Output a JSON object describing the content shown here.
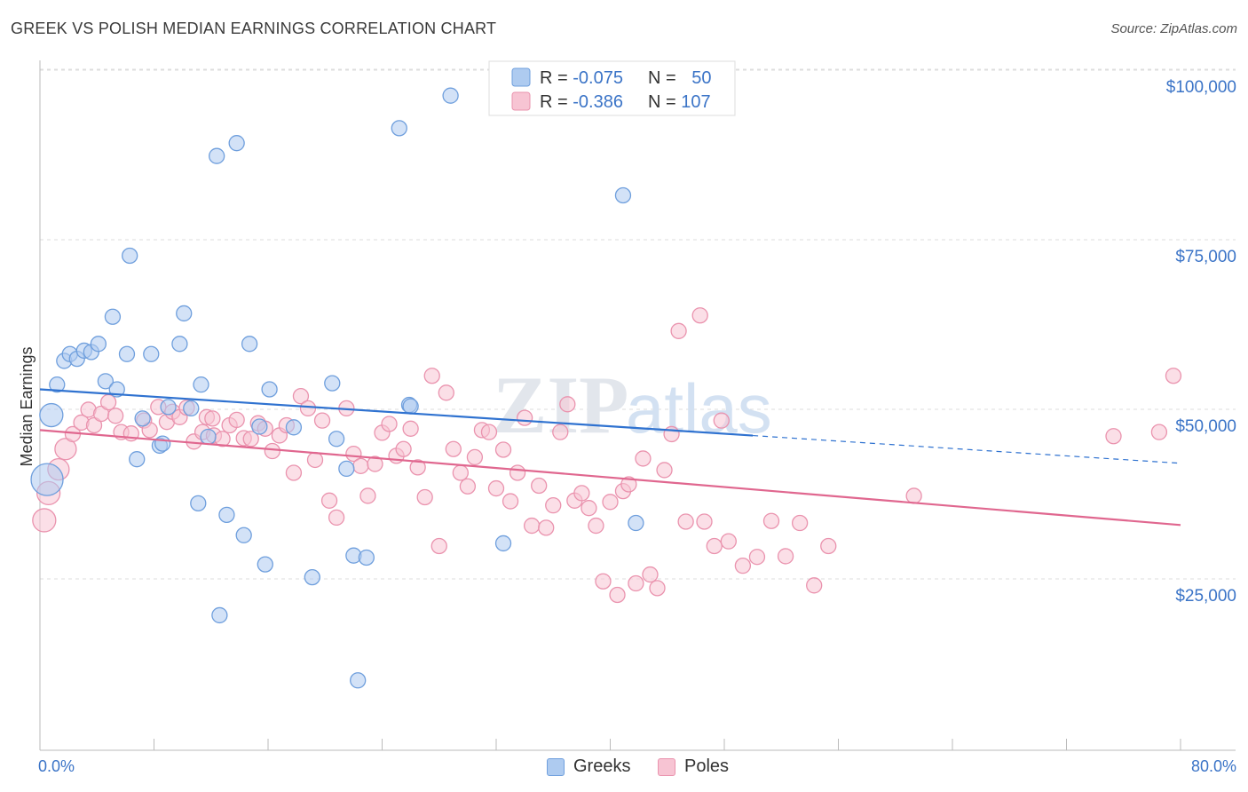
{
  "title": "GREEK VS POLISH MEDIAN EARNINGS CORRELATION CHART",
  "source": "Source: ZipAtlas.com",
  "watermark": {
    "zip": "ZIP",
    "atlas": "atlas"
  },
  "legend_top": {
    "rows": [
      {
        "r_label": "R = ",
        "r_value": "-0.075",
        "n_label": "N = ",
        "n_value": "50"
      },
      {
        "r_label": "R = ",
        "r_value": "-0.386",
        "n_label": "N = ",
        "n_value": "107"
      }
    ]
  },
  "legend_bottom": {
    "series0": "Greeks",
    "series1": "Poles"
  },
  "colors": {
    "greeks_fill": "#aecbf0",
    "greeks_stroke": "#6f9fdd",
    "greeks_line": "#2f72d0",
    "poles_fill": "#f7c4d3",
    "poles_stroke": "#ea93ae",
    "poles_line": "#e0678f",
    "tick_text": "#3b74c7",
    "grid": "#dddddd"
  },
  "chart_data": {
    "type": "scatter",
    "title": "GREEK VS POLISH MEDIAN EARNINGS CORRELATION CHART",
    "xlabel": "",
    "ylabel": "Median Earnings",
    "xlim": [
      0,
      80
    ],
    "ylim": [
      0,
      105000
    ],
    "x_tick_labels": [
      "0.0%",
      "80.0%"
    ],
    "y_ticks": [
      {
        "value": 25000,
        "label": "$25,000"
      },
      {
        "value": 50000,
        "label": "$50,000"
      },
      {
        "value": 75000,
        "label": "$75,000"
      },
      {
        "value": 100000,
        "label": "$100,000"
      }
    ],
    "grid": true,
    "legend": "top-center",
    "series": [
      {
        "name": "Greeks",
        "trend": {
          "x0": 0,
          "y0": 55300,
          "x1": 80,
          "y1": 44400,
          "solid_until": 50
        },
        "points": [
          {
            "x": 0.5,
            "y": 42000,
            "s": 18
          },
          {
            "x": 0.8,
            "y": 51500,
            "s": 13
          },
          {
            "x": 1.2,
            "y": 56000
          },
          {
            "x": 1.7,
            "y": 59500
          },
          {
            "x": 2.1,
            "y": 60500
          },
          {
            "x": 2.6,
            "y": 59800
          },
          {
            "x": 3.1,
            "y": 61000
          },
          {
            "x": 3.6,
            "y": 60800
          },
          {
            "x": 4.1,
            "y": 62000
          },
          {
            "x": 4.6,
            "y": 56500
          },
          {
            "x": 5.1,
            "y": 66000
          },
          {
            "x": 5.4,
            "y": 55300
          },
          {
            "x": 6.1,
            "y": 60500
          },
          {
            "x": 6.3,
            "y": 75000
          },
          {
            "x": 6.8,
            "y": 45000
          },
          {
            "x": 7.2,
            "y": 51000
          },
          {
            "x": 7.8,
            "y": 60500
          },
          {
            "x": 8.4,
            "y": 47000
          },
          {
            "x": 8.6,
            "y": 47300
          },
          {
            "x": 9.0,
            "y": 52700
          },
          {
            "x": 9.8,
            "y": 62000
          },
          {
            "x": 10.1,
            "y": 66500
          },
          {
            "x": 10.6,
            "y": 52500
          },
          {
            "x": 11.1,
            "y": 38500
          },
          {
            "x": 11.3,
            "y": 56000
          },
          {
            "x": 11.8,
            "y": 48300
          },
          {
            "x": 12.4,
            "y": 89700
          },
          {
            "x": 12.6,
            "y": 22000
          },
          {
            "x": 13.1,
            "y": 36800
          },
          {
            "x": 13.8,
            "y": 91600
          },
          {
            "x": 14.3,
            "y": 33800
          },
          {
            "x": 14.7,
            "y": 62000
          },
          {
            "x": 15.8,
            "y": 29500
          },
          {
            "x": 15.4,
            "y": 49800
          },
          {
            "x": 16.1,
            "y": 55300
          },
          {
            "x": 17.8,
            "y": 49700
          },
          {
            "x": 19.1,
            "y": 27600
          },
          {
            "x": 20.5,
            "y": 56200
          },
          {
            "x": 20.8,
            "y": 48000
          },
          {
            "x": 21.5,
            "y": 43600
          },
          {
            "x": 22.0,
            "y": 30800
          },
          {
            "x": 22.3,
            "y": 12400
          },
          {
            "x": 22.9,
            "y": 30500
          },
          {
            "x": 25.2,
            "y": 93800
          },
          {
            "x": 25.9,
            "y": 53000
          },
          {
            "x": 28.8,
            "y": 98600
          },
          {
            "x": 32.5,
            "y": 32600
          },
          {
            "x": 40.9,
            "y": 83900
          },
          {
            "x": 41.8,
            "y": 35600
          },
          {
            "x": 26.0,
            "y": 52800
          }
        ]
      },
      {
        "name": "Poles",
        "trend": {
          "x0": 0,
          "y0": 49300,
          "x1": 80,
          "y1": 35300,
          "solid_until": 80
        },
        "points": [
          {
            "x": 0.3,
            "y": 36000,
            "s": 13
          },
          {
            "x": 0.6,
            "y": 40000,
            "s": 13
          },
          {
            "x": 1.3,
            "y": 43500,
            "s": 12
          },
          {
            "x": 1.8,
            "y": 46500,
            "s": 12
          },
          {
            "x": 2.3,
            "y": 48700
          },
          {
            "x": 2.9,
            "y": 50400
          },
          {
            "x": 3.4,
            "y": 52300
          },
          {
            "x": 3.8,
            "y": 50000
          },
          {
            "x": 4.3,
            "y": 51700
          },
          {
            "x": 4.8,
            "y": 53400
          },
          {
            "x": 5.3,
            "y": 51400
          },
          {
            "x": 5.7,
            "y": 49000
          },
          {
            "x": 6.4,
            "y": 48800
          },
          {
            "x": 7.3,
            "y": 50700
          },
          {
            "x": 7.7,
            "y": 49300
          },
          {
            "x": 8.3,
            "y": 52700
          },
          {
            "x": 8.9,
            "y": 50500
          },
          {
            "x": 9.3,
            "y": 52000
          },
          {
            "x": 9.8,
            "y": 51200
          },
          {
            "x": 10.3,
            "y": 52600
          },
          {
            "x": 10.8,
            "y": 47600
          },
          {
            "x": 11.4,
            "y": 49000
          },
          {
            "x": 11.7,
            "y": 51200
          },
          {
            "x": 12.2,
            "y": 48500
          },
          {
            "x": 12.8,
            "y": 48000
          },
          {
            "x": 13.3,
            "y": 50000
          },
          {
            "x": 13.8,
            "y": 50800
          },
          {
            "x": 14.3,
            "y": 48100
          },
          {
            "x": 14.8,
            "y": 48000
          },
          {
            "x": 15.3,
            "y": 50300
          },
          {
            "x": 15.8,
            "y": 49500
          },
          {
            "x": 16.3,
            "y": 46200
          },
          {
            "x": 16.8,
            "y": 48500
          },
          {
            "x": 17.3,
            "y": 50000
          },
          {
            "x": 17.8,
            "y": 43000
          },
          {
            "x": 18.3,
            "y": 54300
          },
          {
            "x": 18.8,
            "y": 52500
          },
          {
            "x": 19.3,
            "y": 44900
          },
          {
            "x": 19.8,
            "y": 50700
          },
          {
            "x": 20.3,
            "y": 38900
          },
          {
            "x": 20.8,
            "y": 36400
          },
          {
            "x": 21.5,
            "y": 52500
          },
          {
            "x": 22.0,
            "y": 45800
          },
          {
            "x": 22.5,
            "y": 44000
          },
          {
            "x": 23.0,
            "y": 39600
          },
          {
            "x": 23.5,
            "y": 44300
          },
          {
            "x": 24.0,
            "y": 48900
          },
          {
            "x": 24.5,
            "y": 50200
          },
          {
            "x": 25.0,
            "y": 45500
          },
          {
            "x": 25.5,
            "y": 46500
          },
          {
            "x": 26.0,
            "y": 49500
          },
          {
            "x": 26.5,
            "y": 43800
          },
          {
            "x": 27.0,
            "y": 39400
          },
          {
            "x": 27.5,
            "y": 57300
          },
          {
            "x": 28.0,
            "y": 32200
          },
          {
            "x": 28.5,
            "y": 54800
          },
          {
            "x": 29.0,
            "y": 46500
          },
          {
            "x": 29.5,
            "y": 43000
          },
          {
            "x": 30.0,
            "y": 41000
          },
          {
            "x": 30.5,
            "y": 45300
          },
          {
            "x": 31.0,
            "y": 49300
          },
          {
            "x": 31.5,
            "y": 49000
          },
          {
            "x": 32.0,
            "y": 40700
          },
          {
            "x": 32.5,
            "y": 46400
          },
          {
            "x": 33.0,
            "y": 38800
          },
          {
            "x": 33.5,
            "y": 43000
          },
          {
            "x": 34.0,
            "y": 51100
          },
          {
            "x": 34.5,
            "y": 35200
          },
          {
            "x": 35.0,
            "y": 41100
          },
          {
            "x": 35.5,
            "y": 34900
          },
          {
            "x": 36.0,
            "y": 38200
          },
          {
            "x": 36.5,
            "y": 49000
          },
          {
            "x": 37.0,
            "y": 53100
          },
          {
            "x": 37.5,
            "y": 38900
          },
          {
            "x": 38.0,
            "y": 40000
          },
          {
            "x": 38.5,
            "y": 37800
          },
          {
            "x": 39.0,
            "y": 35200
          },
          {
            "x": 39.5,
            "y": 27000
          },
          {
            "x": 40.0,
            "y": 38700
          },
          {
            "x": 40.5,
            "y": 25000
          },
          {
            "x": 40.9,
            "y": 40300
          },
          {
            "x": 41.3,
            "y": 41300
          },
          {
            "x": 41.8,
            "y": 26700
          },
          {
            "x": 42.3,
            "y": 45100
          },
          {
            "x": 42.8,
            "y": 28000
          },
          {
            "x": 43.3,
            "y": 26000
          },
          {
            "x": 43.8,
            "y": 43400
          },
          {
            "x": 44.3,
            "y": 48700
          },
          {
            "x": 44.8,
            "y": 63900
          },
          {
            "x": 45.3,
            "y": 35800
          },
          {
            "x": 46.3,
            "y": 66200
          },
          {
            "x": 46.6,
            "y": 35800
          },
          {
            "x": 47.3,
            "y": 32200
          },
          {
            "x": 47.8,
            "y": 50700
          },
          {
            "x": 48.3,
            "y": 32900
          },
          {
            "x": 49.3,
            "y": 29300
          },
          {
            "x": 50.3,
            "y": 30600
          },
          {
            "x": 51.3,
            "y": 35900
          },
          {
            "x": 52.3,
            "y": 30700
          },
          {
            "x": 53.3,
            "y": 35600
          },
          {
            "x": 54.3,
            "y": 26400
          },
          {
            "x": 55.3,
            "y": 32200
          },
          {
            "x": 61.3,
            "y": 39600
          },
          {
            "x": 75.3,
            "y": 48400
          },
          {
            "x": 78.5,
            "y": 49000
          },
          {
            "x": 79.5,
            "y": 57300
          },
          {
            "x": 12.1,
            "y": 51000
          }
        ]
      }
    ]
  }
}
